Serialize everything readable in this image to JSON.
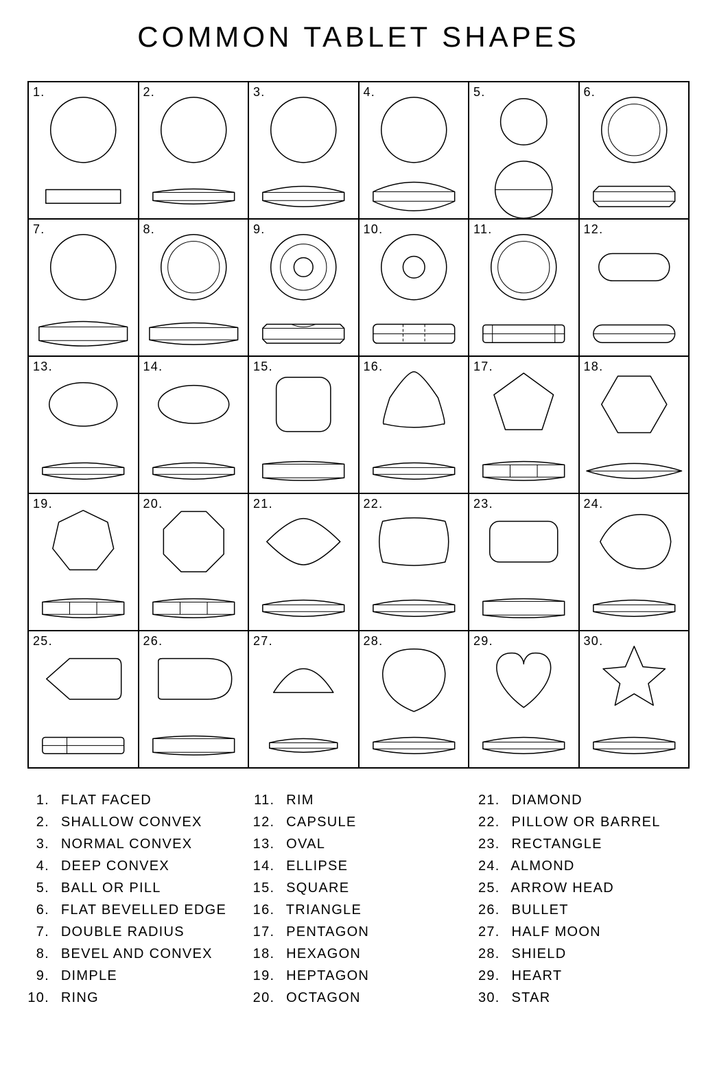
{
  "title": "COMMON TABLET SHAPES",
  "grid": {
    "cols": 6,
    "rows": 5
  },
  "colors": {
    "bg": "#ffffff",
    "fg": "#000000",
    "stroke": "#000000",
    "fill": "#ffffff"
  },
  "stroke_width": 1.5,
  "title_fontsize": 42,
  "cell_num_fontsize": 18,
  "legend_fontsize": 20,
  "shapes": [
    {
      "num": "1.",
      "name": "FLAT FACED",
      "top": "circle",
      "side": "flat"
    },
    {
      "num": "2.",
      "name": "SHALLOW CONVEX",
      "top": "circle",
      "side": "shallow"
    },
    {
      "num": "3.",
      "name": "NORMAL CONVEX",
      "top": "circle",
      "side": "normal"
    },
    {
      "num": "4.",
      "name": "DEEP CONVEX",
      "top": "circle",
      "side": "deep"
    },
    {
      "num": "5.",
      "name": "BALL OR PILL",
      "top": "small_circle",
      "side": "ball"
    },
    {
      "num": "6.",
      "name": "FLAT BEVELLED EDGE",
      "top": "ring",
      "side": "flat_bevel"
    },
    {
      "num": "7.",
      "name": "DOUBLE RADIUS",
      "top": "circle",
      "side": "double_radius"
    },
    {
      "num": "8.",
      "name": "BEVEL AND CONVEX",
      "top": "ring",
      "side": "bevel_convex"
    },
    {
      "num": "9.",
      "name": "DIMPLE",
      "top": "dimple",
      "side": "dimple_side"
    },
    {
      "num": "10.",
      "name": "RING",
      "top": "donut",
      "side": "ring_side"
    },
    {
      "num": "11.",
      "name": "RIM",
      "top": "ring",
      "side": "rim_side"
    },
    {
      "num": "12.",
      "name": "CAPSULE",
      "top": "capsule_top",
      "side": "capsule_side"
    },
    {
      "num": "13.",
      "name": "OVAL",
      "top": "oval",
      "side": "lens"
    },
    {
      "num": "14.",
      "name": "ELLIPSE",
      "top": "ellipse",
      "side": "lens"
    },
    {
      "num": "15.",
      "name": "SQUARE",
      "top": "square",
      "side": "bar_convex"
    },
    {
      "num": "16.",
      "name": "TRIANGLE",
      "top": "triangle",
      "side": "lens"
    },
    {
      "num": "17.",
      "name": "PENTAGON",
      "top": "pentagon",
      "side": "seg3"
    },
    {
      "num": "18.",
      "name": "HEXAGON",
      "top": "hexagon",
      "side": "lens_wide"
    },
    {
      "num": "19.",
      "name": "HEPTAGON",
      "top": "heptagon",
      "side": "seg3"
    },
    {
      "num": "20.",
      "name": "OCTAGON",
      "top": "octagon",
      "side": "seg3"
    },
    {
      "num": "21.",
      "name": "DIAMOND",
      "top": "diamond",
      "side": "lens"
    },
    {
      "num": "22.",
      "name": "PILLOW OR BARREL",
      "top": "pillow",
      "side": "lens"
    },
    {
      "num": "23.",
      "name": "RECTANGLE",
      "top": "rectangle",
      "side": "bar_convex"
    },
    {
      "num": "24.",
      "name": "ALMOND",
      "top": "almond",
      "side": "lens"
    },
    {
      "num": "25.",
      "name": "ARROW HEAD",
      "top": "arrowhead",
      "side": "arrow_side"
    },
    {
      "num": "26.",
      "name": "BULLET",
      "top": "bullet",
      "side": "bar_convex"
    },
    {
      "num": "27.",
      "name": "HALF MOON",
      "top": "halfmoon",
      "side": "lens_small"
    },
    {
      "num": "28.",
      "name": "SHIELD",
      "top": "shield",
      "side": "lens"
    },
    {
      "num": "29.",
      "name": "HEART",
      "top": "heart",
      "side": "lens"
    },
    {
      "num": "30.",
      "name": "STAR",
      "top": "star",
      "side": "lens"
    }
  ],
  "legend_columns": [
    [
      1,
      2,
      3,
      4,
      5,
      6,
      7,
      8,
      9,
      10
    ],
    [
      11,
      12,
      13,
      14,
      15,
      16,
      17,
      18,
      19,
      20
    ],
    [
      21,
      22,
      23,
      24,
      25,
      26,
      27,
      28,
      29,
      30
    ]
  ]
}
